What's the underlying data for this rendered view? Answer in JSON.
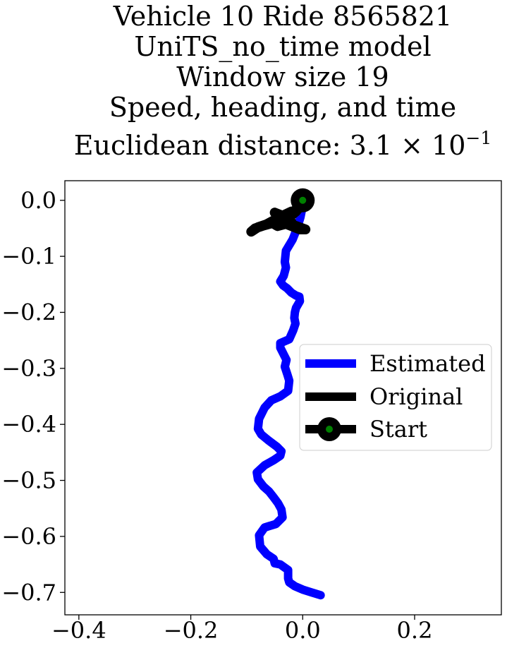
{
  "chart_data": {
    "type": "line",
    "title_lines": [
      "Vehicle 10 Ride 8565821",
      "UniTS_no_time model",
      "Window size 19",
      "Speed, heading, and time",
      "Euclidean distance: 3.1 × 10"
    ],
    "title_exponent": "−1",
    "xlabel": "",
    "ylabel": "",
    "xlim": [
      -0.425,
      0.355
    ],
    "ylim": [
      -0.74,
      0.035
    ],
    "xticks": [
      -0.4,
      -0.2,
      0.0,
      0.2
    ],
    "xtick_labels": [
      "−0.4",
      "−0.2",
      "0.0",
      "0.2"
    ],
    "yticks": [
      0.0,
      -0.1,
      -0.2,
      -0.3,
      -0.4,
      -0.5,
      -0.6,
      -0.7
    ],
    "ytick_labels": [
      "0.0",
      "−0.1",
      "−0.2",
      "−0.3",
      "−0.4",
      "−0.5",
      "−0.6",
      "−0.7"
    ],
    "grid": false,
    "legend_position": "center-right",
    "series": [
      {
        "name": "Estimated",
        "color": "#0000ff",
        "x": [
          0.0,
          -0.004,
          -0.01,
          -0.018,
          -0.03,
          -0.032,
          -0.03,
          -0.034,
          -0.04,
          -0.035,
          -0.028,
          -0.02,
          -0.012,
          -0.006,
          -0.005,
          -0.012,
          -0.014,
          -0.015,
          -0.013,
          -0.017,
          -0.024,
          -0.04,
          -0.04,
          -0.035,
          -0.029,
          -0.032,
          -0.027,
          -0.024,
          -0.026,
          -0.04,
          -0.056,
          -0.068,
          -0.078,
          -0.08,
          -0.074,
          -0.062,
          -0.046,
          -0.038,
          -0.04,
          -0.052,
          -0.068,
          -0.082,
          -0.08,
          -0.07,
          -0.06,
          -0.052,
          -0.044,
          -0.038,
          -0.036,
          -0.048,
          -0.068,
          -0.078,
          -0.076,
          -0.064,
          -0.052,
          -0.05,
          -0.04,
          -0.026,
          -0.026,
          -0.024,
          -0.014,
          0.0,
          0.016,
          0.032
        ],
        "y": [
          -0.01,
          -0.03,
          -0.05,
          -0.07,
          -0.09,
          -0.11,
          -0.12,
          -0.135,
          -0.145,
          -0.152,
          -0.157,
          -0.165,
          -0.17,
          -0.172,
          -0.18,
          -0.192,
          -0.2,
          -0.21,
          -0.22,
          -0.232,
          -0.248,
          -0.255,
          -0.263,
          -0.273,
          -0.285,
          -0.297,
          -0.312,
          -0.322,
          -0.34,
          -0.35,
          -0.357,
          -0.37,
          -0.39,
          -0.408,
          -0.418,
          -0.428,
          -0.44,
          -0.448,
          -0.456,
          -0.464,
          -0.473,
          -0.486,
          -0.498,
          -0.511,
          -0.52,
          -0.53,
          -0.541,
          -0.552,
          -0.566,
          -0.578,
          -0.584,
          -0.598,
          -0.618,
          -0.632,
          -0.64,
          -0.648,
          -0.65,
          -0.66,
          -0.675,
          -0.682,
          -0.689,
          -0.695,
          -0.7,
          -0.705
        ]
      },
      {
        "name": "Original",
        "color": "#000000",
        "x": [
          0.0,
          -0.015,
          -0.03,
          -0.043,
          -0.055,
          -0.07,
          -0.085,
          -0.092,
          -0.08,
          -0.065,
          -0.05,
          -0.04,
          -0.055,
          -0.045,
          -0.03,
          -0.015,
          -0.005,
          0.005,
          -0.02,
          -0.035,
          -0.05,
          -0.04,
          -0.035,
          -0.02,
          -0.03,
          -0.02,
          -0.035,
          -0.03,
          -0.012,
          0.0
        ],
        "y": [
          0.0,
          -0.02,
          -0.032,
          -0.037,
          -0.041,
          -0.045,
          -0.05,
          -0.056,
          -0.048,
          -0.043,
          -0.035,
          -0.028,
          -0.04,
          -0.046,
          -0.042,
          -0.048,
          -0.052,
          -0.052,
          -0.043,
          -0.03,
          -0.022,
          -0.026,
          -0.033,
          -0.039,
          -0.03,
          -0.02,
          -0.027,
          -0.035,
          -0.02,
          -0.005
        ]
      }
    ],
    "start_marker": {
      "name": "Start",
      "x": 0.0,
      "y": 0.0,
      "edge_color": "#000000",
      "face_color": "#008000"
    }
  }
}
